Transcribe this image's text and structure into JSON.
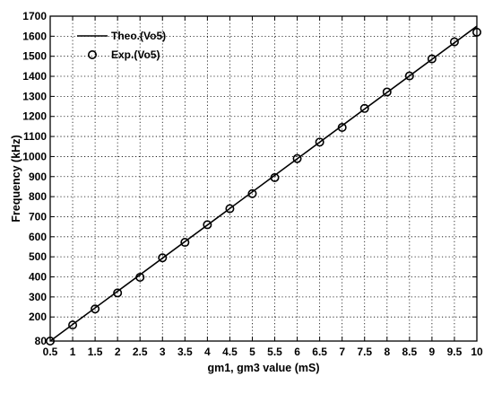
{
  "chart_data": {
    "type": "line",
    "title": "",
    "xlabel": "gm1, gm3 value (mS)",
    "ylabel": "Frequency (kHz)",
    "xlim": [
      0.5,
      10
    ],
    "ylim": [
      80,
      1700
    ],
    "xticks": [
      0.5,
      1,
      1.5,
      2,
      2.5,
      3,
      3.5,
      4,
      4.5,
      5,
      5.5,
      6,
      6.5,
      7,
      7.5,
      8,
      8.5,
      9,
      9.5,
      10
    ],
    "xtick_labels": [
      "0.5",
      "1",
      "1.5",
      "2",
      "2.5",
      "3",
      "3.5",
      "4",
      "4.5",
      "5",
      "5.5",
      "6",
      "6.5",
      "7",
      "7.5",
      "8",
      "8.5",
      "9",
      "9.5",
      "10"
    ],
    "yticks": [
      80,
      200,
      300,
      400,
      500,
      600,
      700,
      800,
      900,
      1000,
      1100,
      1200,
      1300,
      1400,
      1500,
      1600,
      1700
    ],
    "ytick_labels": [
      "80",
      "200",
      "300",
      "400",
      "500",
      "600",
      "700",
      "800",
      "900",
      "1000",
      "1100",
      "1200",
      "1300",
      "1400",
      "1500",
      "1600",
      "1700"
    ],
    "grid": true,
    "legend_position": "top-left",
    "series": [
      {
        "name": "Theo.(Vo5)",
        "style": "line",
        "color": "#000000",
        "x": [
          0.5,
          10
        ],
        "y": [
          80,
          1650
        ]
      },
      {
        "name": "Exp.(Vo5)",
        "style": "marker-circle",
        "color": "#000000",
        "x": [
          0.5,
          1,
          1.5,
          2,
          2.5,
          3,
          3.5,
          4,
          4.5,
          5,
          5.5,
          6,
          6.5,
          7,
          7.5,
          8,
          8.5,
          9,
          9.5,
          10
        ],
        "y": [
          80,
          160,
          240,
          320,
          398,
          495,
          572,
          660,
          740,
          815,
          895,
          990,
          1072,
          1145,
          1240,
          1322,
          1402,
          1487,
          1572,
          1620
        ]
      }
    ]
  }
}
